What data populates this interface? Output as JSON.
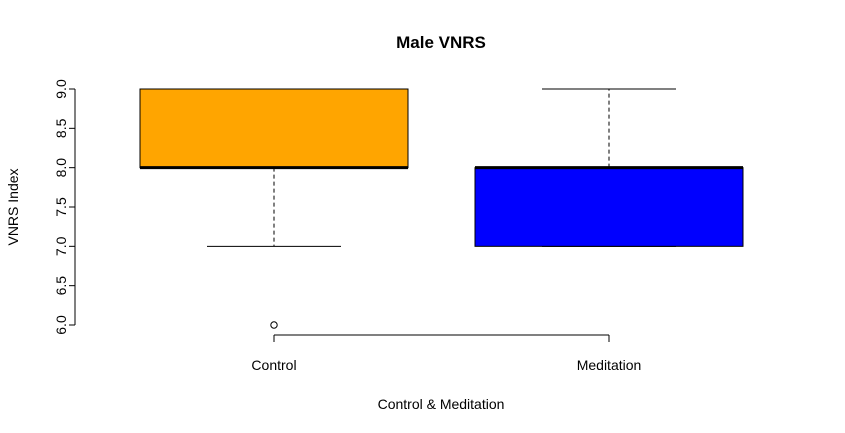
{
  "chart_data": {
    "type": "boxplot",
    "title": "Male VNRS",
    "xlabel": "Control & Meditation",
    "ylabel": "VNRS Index",
    "ylim": [
      6.0,
      9.0
    ],
    "yticks": [
      "6.0",
      "6.5",
      "7.0",
      "7.5",
      "8.0",
      "8.5",
      "9.0"
    ],
    "categories": [
      "Control",
      "Meditation"
    ],
    "boxes": [
      {
        "category": "Control",
        "whisker_low": 7.0,
        "q1": 8.0,
        "median": 8.0,
        "q3": 9.0,
        "whisker_high": 9.0,
        "outliers": [
          6.0
        ],
        "color": "#FFA500"
      },
      {
        "category": "Meditation",
        "whisker_low": 7.0,
        "q1": 7.0,
        "median": 8.0,
        "q3": 8.0,
        "whisker_high": 9.0,
        "outliers": [],
        "color": "#0000FF"
      }
    ],
    "grid": false,
    "legend": "none"
  }
}
